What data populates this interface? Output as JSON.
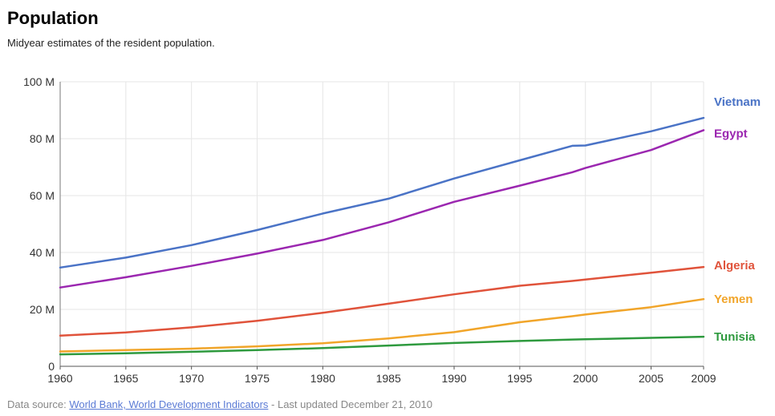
{
  "header": {
    "title": "Population",
    "subtitle": "Midyear estimates of the resident population."
  },
  "footer": {
    "prefix": "Data source:",
    "link_text": "World Bank, World Development Indicators",
    "suffix": "- Last updated December 21, 2010"
  },
  "chart_data": {
    "type": "line",
    "xlim": [
      1960,
      2009
    ],
    "ylim": [
      0,
      100
    ],
    "y_unit": "M",
    "x_ticks": [
      1960,
      1965,
      1970,
      1975,
      1980,
      1985,
      1990,
      1995,
      2000,
      2005,
      2009
    ],
    "y_ticks": [
      0,
      20,
      40,
      60,
      80,
      100
    ],
    "y_tick_labels": [
      "0",
      "20 M",
      "40 M",
      "60 M",
      "80 M",
      "100 M"
    ],
    "grid": true,
    "legend": "right-end-labels",
    "x": [
      1960,
      1965,
      1970,
      1975,
      1980,
      1985,
      1990,
      1995,
      1999,
      2000,
      2005,
      2009
    ],
    "series": [
      {
        "name": "Vietnam",
        "color": "#4a73c6",
        "values": [
          34.7,
          38.2,
          42.6,
          47.9,
          53.7,
          58.9,
          66.0,
          72.4,
          77.5,
          77.6,
          82.6,
          87.3
        ]
      },
      {
        "name": "Egypt",
        "color": "#9b27b0",
        "values": [
          27.7,
          31.3,
          35.3,
          39.6,
          44.4,
          50.6,
          57.8,
          63.5,
          68.2,
          69.7,
          76.0,
          83.0
        ]
      },
      {
        "name": "Algeria",
        "color": "#e0533b",
        "values": [
          10.8,
          11.9,
          13.7,
          16.0,
          18.8,
          22.0,
          25.3,
          28.3,
          30.0,
          30.5,
          32.9,
          34.9
        ]
      },
      {
        "name": "Yemen",
        "color": "#f1a52a",
        "values": [
          5.2,
          5.7,
          6.2,
          7.0,
          8.1,
          9.8,
          12.0,
          15.5,
          17.6,
          18.2,
          20.8,
          23.6
        ]
      },
      {
        "name": "Tunisia",
        "color": "#2e9a3e",
        "values": [
          4.2,
          4.6,
          5.1,
          5.7,
          6.4,
          7.3,
          8.2,
          8.9,
          9.4,
          9.5,
          10.0,
          10.4
        ]
      }
    ]
  }
}
